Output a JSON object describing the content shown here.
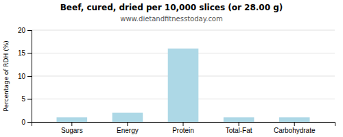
{
  "chart_data": {
    "type": "bar",
    "title": "Beef, cured, dried per 10,000 slices (or 28.00 g)",
    "subtitle": "www.dietandfitnesstoday.com",
    "categories": [
      "Sugars",
      "Energy",
      "Protein",
      "Total-Fat",
      "Carbohydrate"
    ],
    "values": [
      1.0,
      2.0,
      16.0,
      1.0,
      1.0
    ],
    "color": "#add8e6",
    "ylabel": "Percentage of RDH (%)",
    "ylim": [
      0,
      20
    ],
    "yticks": [
      0,
      5,
      10,
      15,
      20
    ],
    "grid": true
  }
}
